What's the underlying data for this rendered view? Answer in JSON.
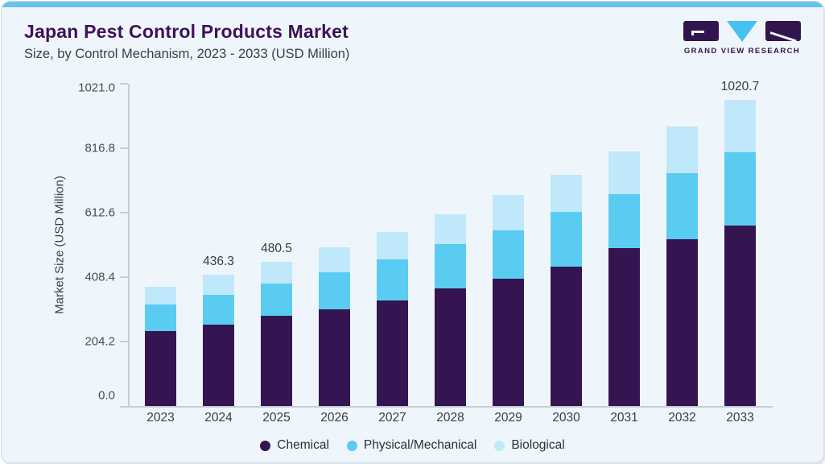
{
  "header": {
    "title": "Japan Pest Control Products Market",
    "subtitle": "Size, by Control Mechanism, 2023 - 2033 (USD Million)"
  },
  "logo": {
    "text": "GRAND VIEW RESEARCH"
  },
  "colors": {
    "accent_bar": "#67c3e9",
    "title_text": "#3f1158",
    "chemical": "#351452",
    "physical_mechanical": "#5accf2",
    "biological": "#bfe8fa",
    "axis_line": "#c5ccd5"
  },
  "chart_data": {
    "type": "bar",
    "stacked": true,
    "title": "Japan Pest Control Products Market Size, by Control Mechanism, 2023 - 2033 (USD Million)",
    "xlabel": "",
    "ylabel": "Market Size (USD Million)",
    "ylim": [
      0,
      1021.0
    ],
    "ytick_labels": [
      "0.0",
      "204.2",
      "408.4",
      "612.6",
      "816.8",
      "1021.0"
    ],
    "grid": false,
    "legend_position": "bottom",
    "categories": [
      "2023",
      "2024",
      "2025",
      "2026",
      "2027",
      "2028",
      "2029",
      "2030",
      "2031",
      "2032",
      "2033"
    ],
    "series": [
      {
        "name": "Chemical",
        "color": "#351452",
        "values": [
          249.3,
          270.4,
          300.2,
          321.5,
          352.0,
          391.0,
          424.9,
          463.1,
          525.0,
          555.0,
          601.0
        ]
      },
      {
        "name": "Physical/Mechanical",
        "color": "#5accf2",
        "values": [
          88.6,
          100.9,
          109.0,
          125.2,
          137.3,
          147.3,
          161.0,
          183.3,
          182.0,
          219.5,
          245.2
        ]
      },
      {
        "name": "Biological",
        "color": "#bfe8fa",
        "values": [
          59.4,
          65.0,
          71.3,
          81.6,
          91.5,
          100.2,
          116.0,
          125.1,
          141.1,
          157.8,
          174.5
        ]
      }
    ],
    "totals": [
      397.3,
      436.3,
      480.5,
      528.3,
      580.8,
      638.5,
      701.9,
      771.5,
      848.1,
      932.3,
      1020.7
    ],
    "bar_value_labels": {
      "2024": "436.3",
      "2025": "480.5",
      "2033": "1020.7"
    }
  }
}
